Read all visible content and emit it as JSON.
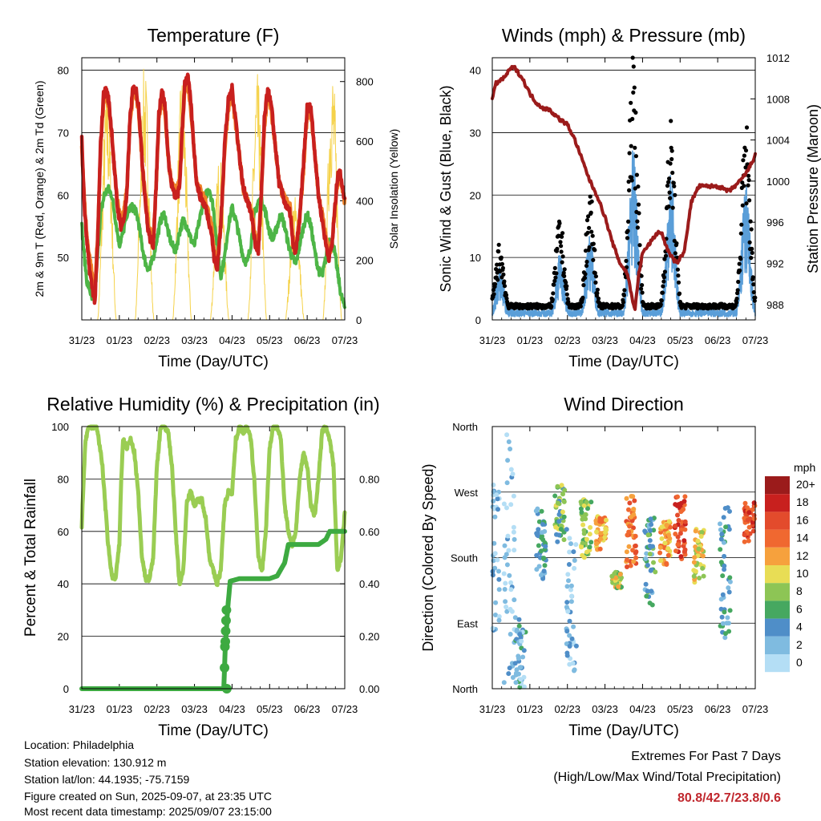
{
  "colors": {
    "temp_red": "#c8201e",
    "temp_orange": "#f08028",
    "dewpoint_green": "#4db546",
    "solar_yellow": "#f5d24a",
    "wind_blue": "#5a9ed8",
    "gust_black": "#000000",
    "pressure_maroon": "#9b1b1b",
    "rh_lightgreen": "#9acd53",
    "precip_green": "#3daa41"
  },
  "time_ticks": [
    "31/23",
    "01/23",
    "02/23",
    "03/23",
    "04/23",
    "05/23",
    "06/23",
    "07/23"
  ],
  "chart_data": [
    {
      "id": "temperature",
      "type": "line",
      "title": "Temperature (F)",
      "xlabel": "Time (Day/UTC)",
      "ylabel": "2m & 9m T (Red, Orange) & 2m Td (Green)",
      "y2label": "Solar Insolation (Yellow)",
      "ylim": [
        40,
        82
      ],
      "yticks": [
        50,
        60,
        70,
        80
      ],
      "y2lim": [
        0,
        880
      ],
      "y2ticks": [
        0,
        200,
        400,
        600,
        800
      ],
      "xlim": [
        0,
        7
      ],
      "series": [
        {
          "key": "t2m",
          "color": "#c8201e",
          "x": [
            0,
            0.07,
            0.14,
            0.21,
            0.28,
            0.35,
            0.42,
            0.5,
            0.58,
            0.65,
            0.72,
            0.8,
            0.87,
            0.95,
            1.04,
            1.12,
            1.2,
            1.28,
            1.36,
            1.44,
            1.52,
            1.6,
            1.68,
            1.75,
            1.82,
            1.9,
            1.97,
            2.05,
            2.13,
            2.22,
            2.3,
            2.38,
            2.46,
            2.54,
            2.6,
            2.67,
            2.74,
            2.82,
            2.9,
            2.98,
            3.06,
            3.14,
            3.22,
            3.3,
            3.38,
            3.45,
            3.52,
            3.6,
            3.7,
            3.8,
            3.9,
            4.0,
            4.1,
            4.2,
            4.3,
            4.42,
            4.54,
            4.62,
            4.7,
            4.78,
            4.86,
            4.95,
            5.05,
            5.15,
            5.25,
            5.35,
            5.45,
            5.55,
            5.62,
            5.7,
            5.8,
            5.9,
            6.0,
            6.1,
            6.2,
            6.3,
            6.4,
            6.5,
            6.58,
            6.66,
            6.74,
            6.82,
            6.9,
            7.0
          ],
          "y": [
            69,
            58,
            52,
            48,
            45,
            43,
            52,
            68,
            76,
            77,
            75,
            70,
            64,
            58,
            55,
            56,
            60,
            72,
            77,
            77,
            74,
            66,
            60,
            55,
            53,
            52,
            60,
            73,
            77,
            74,
            66,
            62,
            60,
            60,
            61,
            70,
            78,
            79,
            75,
            68,
            62,
            60,
            59,
            58,
            56,
            54,
            50,
            48,
            55,
            68,
            75,
            77,
            72,
            66,
            61,
            59,
            56,
            52,
            51,
            60,
            72,
            77,
            74,
            68,
            62,
            60,
            58,
            57,
            52,
            51,
            56,
            65,
            74,
            74,
            67,
            60,
            56,
            52,
            50,
            52,
            58,
            64,
            63,
            59
          ]
        },
        {
          "key": "t9m",
          "color": "#f08028",
          "x": [
            0,
            0.07,
            0.14,
            0.21,
            0.28,
            0.35,
            0.42,
            0.5,
            0.58,
            0.65,
            0.72,
            0.8,
            0.87,
            0.95,
            1.04,
            1.12,
            1.2,
            1.28,
            1.36,
            1.44,
            1.52,
            1.6,
            1.68,
            1.75,
            1.82,
            1.9,
            1.97,
            2.05,
            2.13,
            2.22,
            2.3,
            2.38,
            2.46,
            2.54,
            2.6,
            2.67,
            2.74,
            2.82,
            2.9,
            2.98,
            3.06,
            3.14,
            3.22,
            3.3,
            3.38,
            3.45,
            3.52,
            3.6,
            3.7,
            3.8,
            3.9,
            4.0,
            4.1,
            4.2,
            4.3,
            4.42,
            4.54,
            4.62,
            4.7,
            4.78,
            4.86,
            4.95,
            5.05,
            5.15,
            5.25,
            5.35,
            5.45,
            5.55,
            5.62,
            5.7,
            5.8,
            5.9,
            6.0,
            6.1,
            6.2,
            6.3,
            6.4,
            6.5,
            6.58,
            6.66,
            6.74,
            6.82,
            6.9,
            7.0
          ],
          "y": [
            68,
            59,
            53,
            50,
            47,
            45,
            53,
            67,
            75,
            76,
            74,
            69,
            64,
            59,
            56,
            57,
            61,
            71,
            76,
            76,
            73,
            66,
            61,
            56,
            54,
            53,
            60,
            72,
            76,
            73,
            66,
            62,
            61,
            61,
            62,
            69,
            77,
            78,
            74,
            68,
            62,
            61,
            60,
            59,
            57,
            55,
            51,
            49,
            55,
            67,
            74,
            76,
            71,
            66,
            61,
            59,
            57,
            53,
            52,
            60,
            71,
            76,
            73,
            68,
            62,
            60,
            59,
            58,
            53,
            52,
            56,
            64,
            73,
            73,
            67,
            60,
            57,
            53,
            51,
            52,
            58,
            63,
            62,
            59
          ]
        },
        {
          "key": "td2m",
          "color": "#4db546",
          "x": [
            0,
            0.07,
            0.14,
            0.21,
            0.28,
            0.35,
            0.42,
            0.5,
            0.6,
            0.7,
            0.8,
            0.9,
            1.0,
            1.1,
            1.2,
            1.3,
            1.4,
            1.5,
            1.6,
            1.7,
            1.8,
            1.9,
            2.0,
            2.1,
            2.2,
            2.3,
            2.4,
            2.5,
            2.6,
            2.7,
            2.8,
            2.9,
            3.0,
            3.1,
            3.2,
            3.3,
            3.4,
            3.5,
            3.6,
            3.7,
            3.8,
            3.9,
            4.0,
            4.1,
            4.2,
            4.3,
            4.4,
            4.5,
            4.6,
            4.7,
            4.8,
            4.9,
            5.0,
            5.1,
            5.2,
            5.3,
            5.4,
            5.5,
            5.6,
            5.7,
            5.8,
            5.9,
            6.0,
            6.1,
            6.2,
            6.3,
            6.4,
            6.5,
            6.6,
            6.7,
            6.8,
            6.9,
            7.0
          ],
          "y": [
            55,
            50,
            46,
            45,
            43,
            44,
            50,
            57,
            60,
            61,
            60,
            56,
            52,
            54,
            57,
            58,
            58,
            56,
            52,
            49,
            48,
            50,
            53,
            56,
            57,
            54,
            52,
            51,
            54,
            56,
            55,
            53,
            52,
            55,
            58,
            60,
            61,
            58,
            52,
            47,
            50,
            55,
            58,
            56,
            53,
            50,
            49,
            52,
            57,
            59,
            59,
            57,
            54,
            53,
            55,
            57,
            55,
            52,
            50,
            49,
            52,
            55,
            57,
            55,
            51,
            48,
            47,
            50,
            53,
            52,
            48,
            44,
            42
          ]
        },
        {
          "key": "solar",
          "color": "#f5d24a",
          "axis": "y2",
          "days": [
            {
              "start": 0.42,
              "peak": 790
            },
            {
              "start": 1.42,
              "peak": 860
            },
            {
              "start": 2.42,
              "peak": 830
            },
            {
              "start": 3.42,
              "peak": 560
            },
            {
              "start": 4.42,
              "peak": 830
            },
            {
              "start": 5.42,
              "peak": 420
            },
            {
              "start": 6.42,
              "peak": 860
            }
          ]
        }
      ]
    },
    {
      "id": "winds",
      "type": "scatter",
      "title": "Winds (mph) & Pressure (mb)",
      "xlabel": "Time (Day/UTC)",
      "ylabel": "Sonic Wind & Gust (Blue, Black)",
      "y2label": "Station Pressure (Maroon)",
      "ylim": [
        0,
        42
      ],
      "yticks": [
        0,
        10,
        20,
        30,
        40
      ],
      "y2lim": [
        986.5,
        1012
      ],
      "y2ticks": [
        988,
        992,
        996,
        1000,
        1004,
        1008,
        1012
      ],
      "xlim": [
        0,
        7
      ],
      "wind_daily_peaks": [
        {
          "t": 0.2,
          "wind": 8,
          "gust": 11
        },
        {
          "t": 1.8,
          "wind": 10,
          "gust": 15
        },
        {
          "t": 2.6,
          "wind": 13,
          "gust": 19
        },
        {
          "t": 3.75,
          "wind": 25,
          "gust": 40
        },
        {
          "t": 4.75,
          "wind": 22,
          "gust": 30
        },
        {
          "t": 6.75,
          "wind": 20,
          "gust": 30
        }
      ],
      "pressure": {
        "color": "#9b1b1b",
        "x": [
          0,
          0.1,
          0.3,
          0.5,
          0.6,
          0.8,
          1.0,
          1.2,
          1.4,
          1.5,
          1.8,
          2.0,
          2.2,
          2.4,
          2.6,
          2.8,
          3.0,
          3.2,
          3.4,
          3.6,
          3.7,
          3.8,
          3.9,
          4.0,
          4.2,
          4.4,
          4.5,
          4.7,
          4.9,
          5.1,
          5.3,
          5.5,
          5.8,
          6.0,
          6.3,
          6.6,
          6.8,
          7.0
        ],
        "y": [
          1008,
          1009.5,
          1010,
          1011,
          1011,
          1010,
          1008.5,
          1007.5,
          1007,
          1007,
          1006,
          1005.5,
          1004,
          1002,
          1000,
          998.5,
          996.5,
          994,
          992,
          991,
          989,
          987.5,
          991,
          993,
          994,
          995,
          995,
          993,
          992,
          993,
          998,
          999.5,
          999.5,
          999.5,
          999,
          1000,
          1001,
          1002.5
        ]
      }
    },
    {
      "id": "humidity",
      "type": "line",
      "title": "Relative Humidity (%) & Precipitation (in)",
      "xlabel": "Time (Day/UTC)",
      "ylabel": "Percent & Total Rainfall",
      "ylim": [
        0,
        100
      ],
      "yticks": [
        0,
        20,
        40,
        60,
        80,
        100
      ],
      "y2ticks": [
        "0.00",
        "0.20",
        "0.40",
        "0.60",
        "0.80"
      ],
      "xlim": [
        0,
        7
      ],
      "series": [
        {
          "key": "rh",
          "color": "#9acd53",
          "x": [
            0,
            0.05,
            0.1,
            0.2,
            0.3,
            0.4,
            0.55,
            0.7,
            0.8,
            0.9,
            1.0,
            1.05,
            1.1,
            1.2,
            1.3,
            1.4,
            1.5,
            1.6,
            1.7,
            1.8,
            1.9,
            2.0,
            2.1,
            2.2,
            2.3,
            2.4,
            2.5,
            2.6,
            2.7,
            2.8,
            2.9,
            3.0,
            3.1,
            3.2,
            3.3,
            3.4,
            3.5,
            3.6,
            3.7,
            3.8,
            3.9,
            4.0,
            4.1,
            4.2,
            4.3,
            4.4,
            4.5,
            4.6,
            4.7,
            4.8,
            4.9,
            5.0,
            5.1,
            5.2,
            5.3,
            5.4,
            5.5,
            5.6,
            5.7,
            5.8,
            5.9,
            6.0,
            6.1,
            6.2,
            6.3,
            6.4,
            6.5,
            6.6,
            6.7,
            6.8,
            6.9,
            7.0
          ],
          "y": [
            62,
            80,
            95,
            100,
            100,
            100,
            85,
            55,
            43,
            42,
            55,
            80,
            95,
            92,
            95,
            90,
            75,
            50,
            42,
            42,
            50,
            85,
            100,
            100,
            98,
            85,
            60,
            40,
            45,
            72,
            75,
            70,
            72,
            72,
            65,
            50,
            45,
            40,
            45,
            70,
            75,
            75,
            95,
            100,
            98,
            100,
            95,
            78,
            50,
            45,
            60,
            92,
            100,
            100,
            95,
            70,
            60,
            55,
            60,
            80,
            90,
            85,
            70,
            66,
            80,
            98,
            100,
            95,
            85,
            45,
            50,
            67
          ]
        },
        {
          "key": "precip",
          "color": "#3daa41",
          "x": [
            0,
            1.0,
            2.0,
            3.0,
            3.78,
            3.8,
            3.82,
            3.85,
            3.88,
            3.95,
            4.2,
            4.6,
            5.0,
            5.2,
            5.4,
            5.5,
            5.7,
            6.0,
            6.3,
            6.5,
            6.6,
            6.7,
            7.0
          ],
          "y": [
            0,
            0,
            0,
            0,
            0,
            0.08,
            0.16,
            0.22,
            0.3,
            0.41,
            0.42,
            0.42,
            0.42,
            0.43,
            0.48,
            0.55,
            0.55,
            0.55,
            0.55,
            0.57,
            0.6,
            0.6,
            0.6
          ]
        }
      ]
    },
    {
      "id": "direction",
      "type": "scatter",
      "title": "Wind Direction",
      "xlabel": "Time (Day/UTC)",
      "ylabel": "Direction (Colored By Speed)",
      "ylim": [
        0,
        360
      ],
      "ytick_labels": [
        "North",
        "East",
        "South",
        "West",
        "North"
      ],
      "xlim": [
        0,
        7
      ],
      "legend": {
        "title": "mph",
        "labels": [
          "20+",
          "18",
          "16",
          "14",
          "12",
          "10",
          "8",
          "6",
          "4",
          "2",
          "0"
        ],
        "colors": [
          "#9b1b1b",
          "#c8201e",
          "#e34b2c",
          "#f06830",
          "#f6a13d",
          "#e8dd55",
          "#8dc555",
          "#46a860",
          "#4f8ec8",
          "#7fbbe0",
          "#b4def5"
        ]
      },
      "clusters": [
        {
          "t": 0.05,
          "dir": 200,
          "spread": 120,
          "speed": 2
        },
        {
          "t": 0.45,
          "dir": 180,
          "spread": 180,
          "speed": 1
        },
        {
          "t": 0.75,
          "dir": 50,
          "spread": 50,
          "speed": 3
        },
        {
          "t": 1.3,
          "dir": 200,
          "spread": 50,
          "speed": 4
        },
        {
          "t": 1.8,
          "dir": 240,
          "spread": 40,
          "speed": 7
        },
        {
          "t": 2.1,
          "dir": 120,
          "spread": 100,
          "speed": 2
        },
        {
          "t": 2.5,
          "dir": 220,
          "spread": 40,
          "speed": 8
        },
        {
          "t": 2.9,
          "dir": 215,
          "spread": 25,
          "speed": 12
        },
        {
          "t": 3.3,
          "dir": 150,
          "spread": 12,
          "speed": 9
        },
        {
          "t": 3.7,
          "dir": 215,
          "spread": 50,
          "speed": 14
        },
        {
          "t": 4.2,
          "dir": 175,
          "spread": 60,
          "speed": 5
        },
        {
          "t": 4.6,
          "dir": 200,
          "spread": 30,
          "speed": 12
        },
        {
          "t": 5.0,
          "dir": 220,
          "spread": 45,
          "speed": 16
        },
        {
          "t": 5.5,
          "dir": 185,
          "spread": 40,
          "speed": 10
        },
        {
          "t": 6.2,
          "dir": 160,
          "spread": 90,
          "speed": 4
        },
        {
          "t": 6.85,
          "dir": 230,
          "spread": 30,
          "speed": 16
        }
      ]
    }
  ],
  "info": {
    "location": "Location: Philadelphia",
    "elevation": "Station elevation: 130.912 m",
    "latlon": "Station lat/lon: 44.1935; -75.7159",
    "created": "Figure created on Sun, 2025-09-07, at 23:35 UTC",
    "recent": "Most recent data timestamp: 2025/09/07 23:15:00"
  },
  "extremes": {
    "title": "Extremes For Past 7 Days",
    "subtitle": "(High/Low/Max Wind/Total Precipitation)",
    "values": "80.8/42.7/23.8/0.6"
  }
}
